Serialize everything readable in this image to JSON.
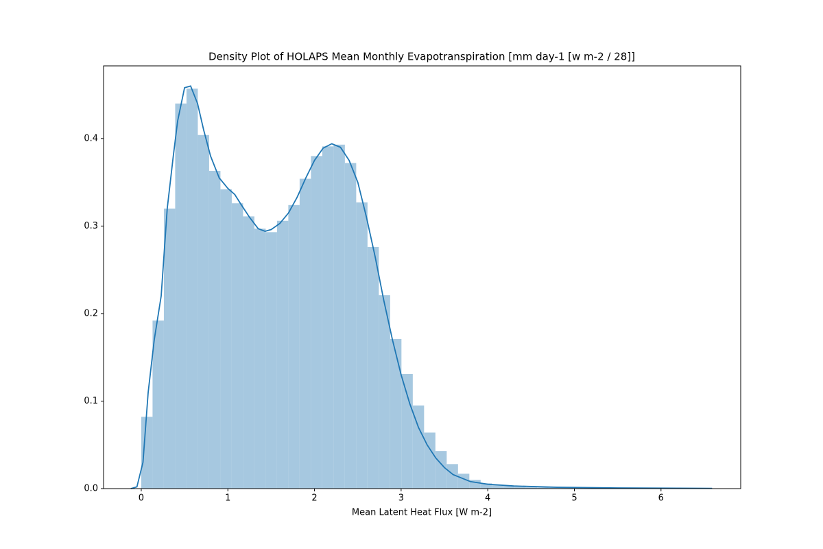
{
  "chart_data": {
    "type": "histogram",
    "title": "Density Plot of HOLAPS Mean Monthly Evapotranspiration [mm day-1 [w m-2 / 28]]",
    "xlabel": "Mean Latent Heat Flux [W m-2]",
    "bins": [
      0,
      0.1306,
      0.2612,
      0.3918,
      0.5224,
      0.653,
      0.7836,
      0.9142,
      1.0448,
      1.1754,
      1.306,
      1.4366,
      1.5672,
      1.6978,
      1.8284,
      1.959,
      2.0896,
      2.2202,
      2.3508,
      2.4814,
      2.612,
      2.7426,
      2.8732,
      3.0038,
      3.1344,
      3.265,
      3.3956,
      3.5262,
      3.6568,
      3.7874,
      3.918,
      4.0486,
      4.1792,
      4.3098,
      4.4404,
      4.571,
      4.7016,
      4.8322,
      4.9628,
      5.0934,
      5.224,
      5.3546,
      5.4852,
      5.6158,
      5.7464,
      5.877,
      6.0076,
      6.1382,
      6.2688,
      6.3994,
      6.53
    ],
    "values": [
      0.082,
      0.192,
      0.32,
      0.44,
      0.457,
      0.404,
      0.363,
      0.342,
      0.326,
      0.311,
      0.297,
      0.293,
      0.306,
      0.324,
      0.354,
      0.38,
      0.391,
      0.393,
      0.372,
      0.327,
      0.276,
      0.221,
      0.171,
      0.131,
      0.095,
      0.064,
      0.043,
      0.028,
      0.017,
      0.01,
      0.006,
      0.004,
      0.003,
      0.002,
      0.0015,
      0.0012,
      0.001,
      0.0009,
      0.0008,
      0.0007,
      0.0006,
      0.0005,
      0.0005,
      0.0004,
      0.0004,
      0.0003,
      0.0003,
      0.0002,
      0.0002,
      0.0002
    ],
    "color": "#a6c8e0",
    "kde": {
      "color": "#1f77b4",
      "x": [
        -0.12,
        -0.05,
        0.02,
        0.08,
        0.15,
        0.23,
        0.3,
        0.37,
        0.42,
        0.5,
        0.57,
        0.65,
        0.72,
        0.8,
        0.9,
        1.0,
        1.08,
        1.15,
        1.25,
        1.35,
        1.43,
        1.5,
        1.6,
        1.7,
        1.8,
        1.9,
        2.0,
        2.1,
        2.2,
        2.3,
        2.4,
        2.5,
        2.6,
        2.7,
        2.8,
        2.9,
        3.0,
        3.1,
        3.2,
        3.3,
        3.4,
        3.5,
        3.6,
        3.8,
        4.0,
        4.3,
        4.8,
        5.5,
        6.59
      ],
      "values": [
        0,
        0.002,
        0.03,
        0.11,
        0.17,
        0.22,
        0.32,
        0.38,
        0.42,
        0.458,
        0.46,
        0.44,
        0.41,
        0.38,
        0.355,
        0.343,
        0.336,
        0.325,
        0.31,
        0.297,
        0.294,
        0.296,
        0.303,
        0.315,
        0.333,
        0.355,
        0.375,
        0.389,
        0.394,
        0.39,
        0.375,
        0.35,
        0.31,
        0.265,
        0.215,
        0.17,
        0.13,
        0.097,
        0.07,
        0.05,
        0.035,
        0.024,
        0.016,
        0.008,
        0.005,
        0.003,
        0.0015,
        0.0008,
        0.0003
      ]
    },
    "xlim": [
      -0.435,
      6.92
    ],
    "ylim": [
      0,
      0.483
    ],
    "xticks": [
      0,
      1,
      2,
      3,
      4,
      5,
      6
    ],
    "yticks": [
      {
        "value": 0,
        "label": "0.0"
      },
      0.1,
      0.2,
      0.3,
      0.4
    ]
  }
}
